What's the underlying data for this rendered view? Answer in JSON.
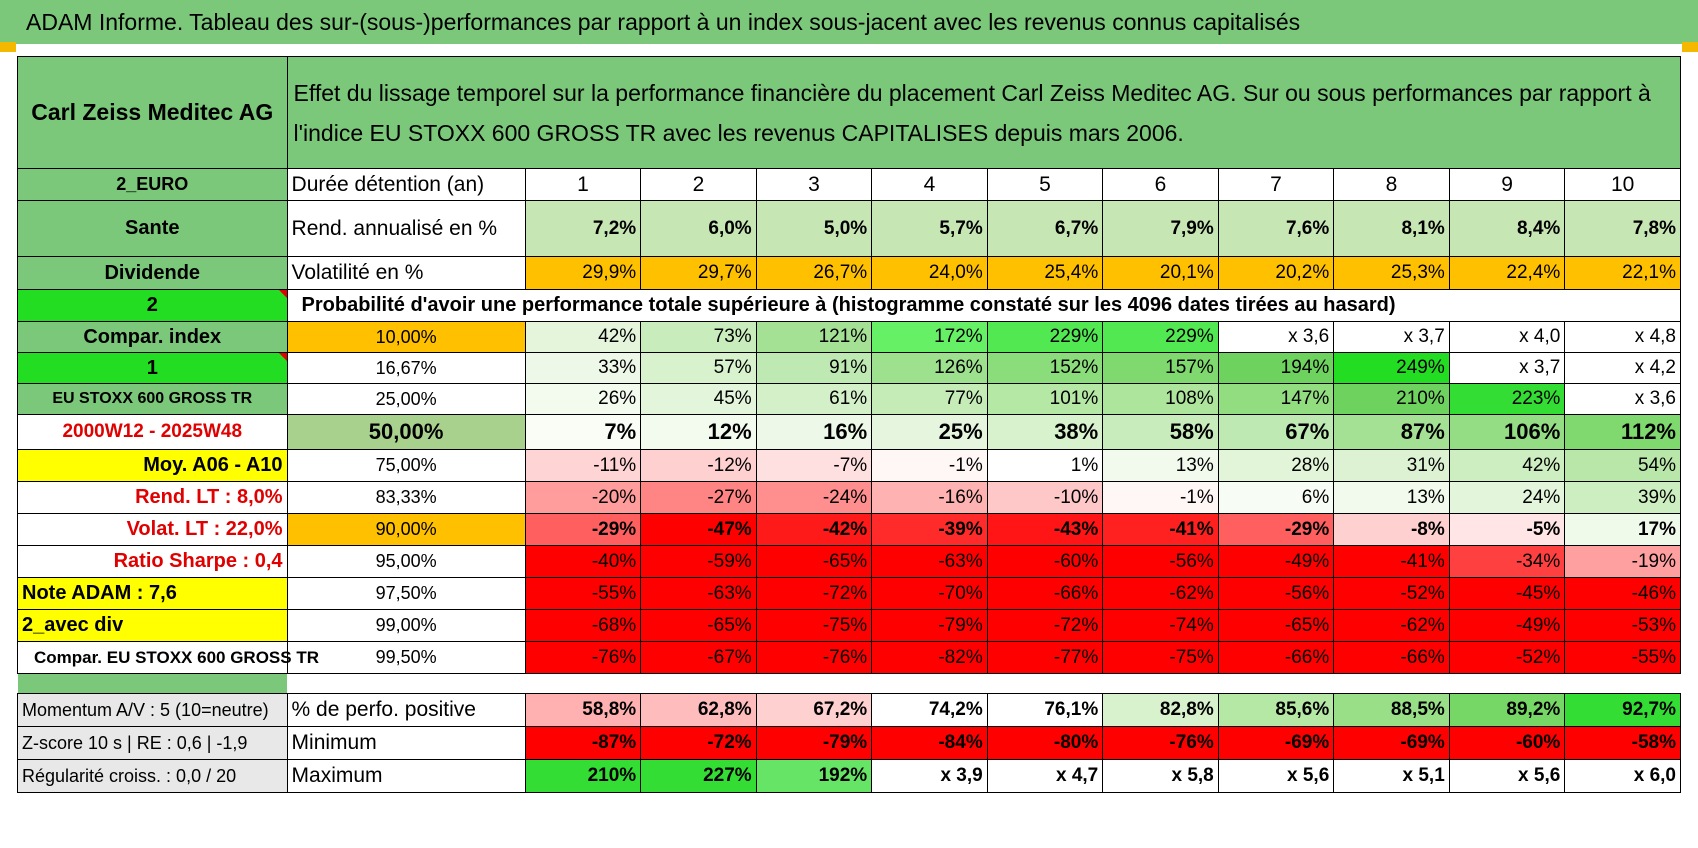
{
  "title": "ADAM Informe. Tableau des sur-(sous-)performances par rapport à un index sous-jacent avec les revenus connus capitalisés",
  "company": "Carl Zeiss Meditec AG",
  "description": "Effet du lissage temporel sur la performance financière du placement Carl Zeiss Meditec AG. Sur ou sous performances par rapport à l'indice EU STOXX 600 GROSS TR avec les revenus CAPITALISES depuis mars 2006.",
  "years_label": "Durée détention (an)",
  "years": [
    "1",
    "2",
    "3",
    "4",
    "5",
    "6",
    "7",
    "8",
    "9",
    "10"
  ],
  "rows": {
    "rend": {
      "side": "Sante",
      "label": "Rend. annualisé en %",
      "values": [
        "7,2%",
        "6,0%",
        "5,0%",
        "5,7%",
        "6,7%",
        "7,9%",
        "7,6%",
        "8,1%",
        "8,4%",
        "7,8%"
      ]
    },
    "vol": {
      "side": "Dividende",
      "label": "Volatilité en %",
      "values": [
        "29,9%",
        "29,7%",
        "26,7%",
        "24,0%",
        "25,4%",
        "20,1%",
        "20,2%",
        "25,3%",
        "22,4%",
        "22,1%"
      ]
    },
    "prob": {
      "side": "2",
      "label": "Probabilité d'avoir une performance totale supérieure à (histogramme constaté sur les 4096 dates tirées au hasard)"
    }
  },
  "side_labels": {
    "currency": "2_EURO",
    "compar_index": "Compar. index",
    "one": "1",
    "index_name": "EU STOXX 600 GROSS TR",
    "period": "2000W12 - 2025W48",
    "moy": "Moy. A06 - A10",
    "rend_lt": "Rend. LT :    8,0%",
    "volat_lt": "Volat. LT :    22,0%",
    "sharpe": "Ratio Sharpe :     0,4",
    "note": "Note ADAM : 7,6",
    "avec_div": "2_avec div",
    "compar_full": "Compar. EU STOXX 600 GROSS TR"
  },
  "prob_rows": [
    {
      "pct": "10,00%",
      "values": [
        "42%",
        "73%",
        "121%",
        "172%",
        "229%",
        "229%",
        "x 3,6",
        "x 3,7",
        "x 4,0",
        "x 4,8"
      ]
    },
    {
      "pct": "16,67%",
      "values": [
        "33%",
        "57%",
        "91%",
        "126%",
        "152%",
        "157%",
        "194%",
        "249%",
        "x 3,7",
        "x 4,2"
      ]
    },
    {
      "pct": "25,00%",
      "values": [
        "26%",
        "45%",
        "61%",
        "77%",
        "101%",
        "108%",
        "147%",
        "210%",
        "223%",
        "x 3,6"
      ]
    },
    {
      "pct": "50,00%",
      "values": [
        "7%",
        "12%",
        "16%",
        "25%",
        "38%",
        "58%",
        "67%",
        "87%",
        "106%",
        "112%"
      ]
    },
    {
      "pct": "75,00%",
      "values": [
        "-11%",
        "-12%",
        "-7%",
        "-1%",
        "1%",
        "13%",
        "28%",
        "31%",
        "42%",
        "54%"
      ]
    },
    {
      "pct": "83,33%",
      "values": [
        "-20%",
        "-27%",
        "-24%",
        "-16%",
        "-10%",
        "-1%",
        "6%",
        "13%",
        "24%",
        "39%"
      ]
    },
    {
      "pct": "90,00%",
      "values": [
        "-29%",
        "-47%",
        "-42%",
        "-39%",
        "-43%",
        "-41%",
        "-29%",
        "-8%",
        "-5%",
        "17%"
      ]
    },
    {
      "pct": "95,00%",
      "values": [
        "-40%",
        "-59%",
        "-65%",
        "-63%",
        "-60%",
        "-56%",
        "-49%",
        "-41%",
        "-34%",
        "-19%"
      ]
    },
    {
      "pct": "97,50%",
      "values": [
        "-55%",
        "-63%",
        "-72%",
        "-70%",
        "-66%",
        "-62%",
        "-56%",
        "-52%",
        "-45%",
        "-46%"
      ]
    },
    {
      "pct": "99,00%",
      "values": [
        "-68%",
        "-65%",
        "-75%",
        "-79%",
        "-72%",
        "-74%",
        "-65%",
        "-62%",
        "-49%",
        "-53%"
      ]
    },
    {
      "pct": "99,50%",
      "values": [
        "-76%",
        "-67%",
        "-76%",
        "-82%",
        "-77%",
        "-75%",
        "-66%",
        "-66%",
        "-52%",
        "-55%"
      ]
    }
  ],
  "prob_colors": [
    [
      "#e4f5dc",
      "#c9ecbc",
      "#a5e195",
      "#66f066",
      "#52e852",
      "#52e852",
      "#ffffff",
      "#ffffff",
      "#ffffff",
      "#ffffff"
    ],
    [
      "#eef8e8",
      "#d9f2ce",
      "#bfe9b2",
      "#9de08d",
      "#8bdc7a",
      "#7fd96e",
      "#6ed25e",
      "#22dd22",
      "#ffffff",
      "#ffffff"
    ],
    [
      "#f3faee",
      "#e3f5da",
      "#d4f0c8",
      "#c5ecb7",
      "#b5e7a5",
      "#aee59d",
      "#93dd81",
      "#6ed25e",
      "#33dd33",
      "#ffffff"
    ],
    [
      "#f9fdf6",
      "#f3fbef",
      "#eef8e8",
      "#e6f5de",
      "#d9f2ce",
      "#c9ecbc",
      "#bfe9b2",
      "#a5e195",
      "#95dd84",
      "#7fd96e"
    ],
    [
      "#ffd4d4",
      "#ffd0d0",
      "#ffe0e0",
      "#fff6f6",
      "#ffffff",
      "#f1faec",
      "#e2f5d9",
      "#ddf2d3",
      "#cdeec0",
      "#b9e7aa"
    ],
    [
      "#ff9d9d",
      "#ff8585",
      "#ff8f8f",
      "#ffb2b2",
      "#ffc8c8",
      "#fff6f6",
      "#f7fcf4",
      "#f1faec",
      "#e3f5da",
      "#cdeec0"
    ],
    [
      "#ff5f5f",
      "#ff0000",
      "#ff1a1a",
      "#ff2a2a",
      "#ff1515",
      "#ff2020",
      "#ff5f5f",
      "#ffd0d0",
      "#ffe5e5",
      "#f0faeb"
    ],
    [
      "#ff0000",
      "#ff0000",
      "#ff0000",
      "#ff0000",
      "#ff0000",
      "#ff0000",
      "#ff0000",
      "#ff0000",
      "#ff4040",
      "#ffa0a0"
    ],
    [
      "#ff0000",
      "#ff0000",
      "#ff0000",
      "#ff0000",
      "#ff0000",
      "#ff0000",
      "#ff0000",
      "#ff0000",
      "#ff0000",
      "#ff0000"
    ],
    [
      "#ff0000",
      "#ff0000",
      "#ff0000",
      "#ff0000",
      "#ff0000",
      "#ff0000",
      "#ff0000",
      "#ff0000",
      "#ff0000",
      "#ff0000"
    ],
    [
      "#ff0000",
      "#ff0000",
      "#ff0000",
      "#ff0000",
      "#ff0000",
      "#ff0000",
      "#ff0000",
      "#ff0000",
      "#ff0000",
      "#ff0000"
    ]
  ],
  "stats": {
    "positive": {
      "side": "Momentum A/V : 5 (10=neutre)",
      "label": "% de perfo. positive",
      "values": [
        "58,8%",
        "62,8%",
        "67,2%",
        "74,2%",
        "76,1%",
        "82,8%",
        "85,6%",
        "88,5%",
        "89,2%",
        "92,7%"
      ],
      "colors": [
        "#ffb0b0",
        "#ffbcbc",
        "#ffd0d0",
        "#ffffff",
        "#ffffff",
        "#d9f2ce",
        "#b5e7a5",
        "#99df88",
        "#77d766",
        "#33dd33"
      ]
    },
    "minimum": {
      "side": "Z-score 10 s | RE : 0,6 | -1,9",
      "label": "Minimum",
      "values": [
        "-87%",
        "-72%",
        "-79%",
        "-84%",
        "-80%",
        "-76%",
        "-69%",
        "-69%",
        "-60%",
        "-58%"
      ],
      "colors": [
        "#ff0000",
        "#ff0000",
        "#ff0000",
        "#ff0000",
        "#ff0000",
        "#ff0000",
        "#ff0000",
        "#ff0000",
        "#ff0000",
        "#ff0000"
      ]
    },
    "maximum": {
      "side": "Régularité croiss. : 0,0 / 20",
      "label": "Maximum",
      "values": [
        "210%",
        "227%",
        "192%",
        "x 3,9",
        "x 4,7",
        "x 5,8",
        "x 5,6",
        "x 5,1",
        "x 5,6",
        "x 6,0"
      ],
      "colors": [
        "#33dd33",
        "#33dd33",
        "#66e466",
        "#ffffff",
        "#ffffff",
        "#ffffff",
        "#ffffff",
        "#ffffff",
        "#ffffff",
        "#ffffff"
      ]
    }
  },
  "colors": {
    "green": "#7bc87b",
    "bright_green": "#22dd22",
    "orange": "#ffc000",
    "yellow": "#ffff00",
    "red_text": "#e00000",
    "light_green": "#c6e6b4"
  }
}
